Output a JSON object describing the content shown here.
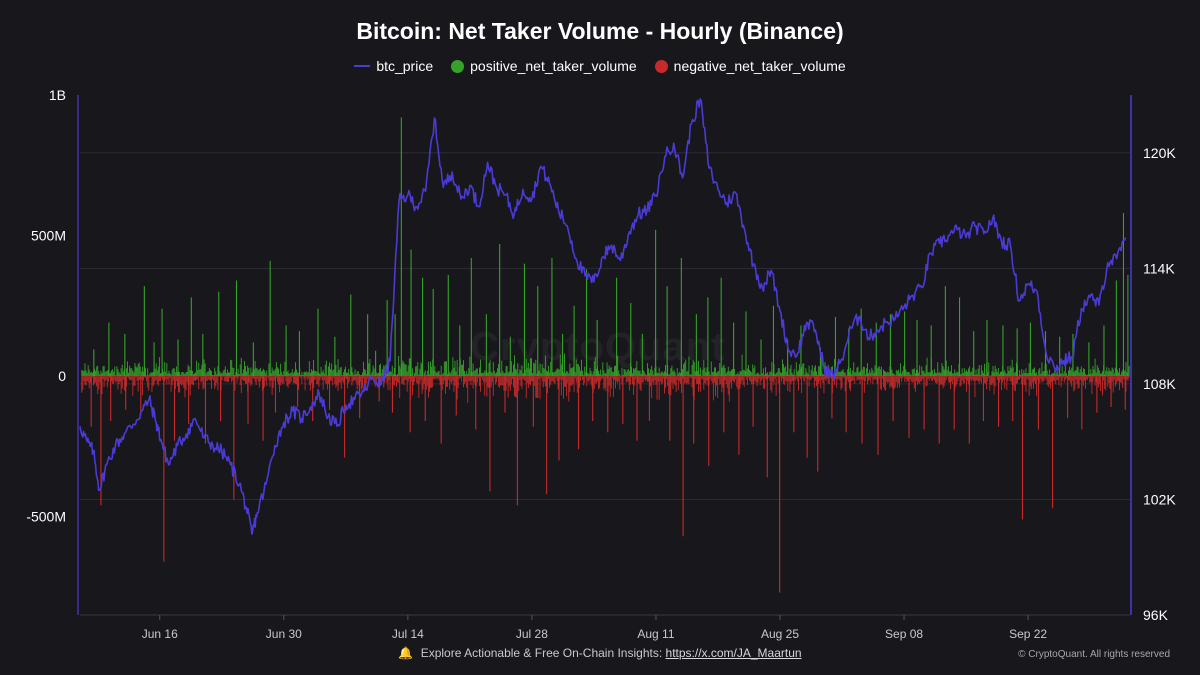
{
  "header": {
    "title": "Bitcoin: Net Taker Volume - Hourly (Binance)"
  },
  "legend": {
    "btc_price": "btc_price",
    "positive": "positive_net_taker_volume",
    "negative": "negative_net_taker_volume"
  },
  "colors": {
    "background": "#18171c",
    "price_line": "#4a3bd6",
    "positive": "#35a22a",
    "negative": "#c62a2a",
    "grid": "#2c2b33",
    "axis_text": "#ffffff"
  },
  "watermark": "CryptoQuant",
  "footer": {
    "text": "Explore Actionable & Free On-Chain Insights:",
    "link": "https://x.com/JA_Maartun",
    "copyright": "© CryptoQuant. All rights reserved"
  },
  "chart_data": {
    "type": "bar",
    "title": "Bitcoin: Net Taker Volume - Hourly (Binance)",
    "x_tick_labels": [
      "Jun 16",
      "Jun 30",
      "Jul 14",
      "Jul 28",
      "Aug 11",
      "Aug 25",
      "Sep 08",
      "Sep 22"
    ],
    "x_tick_positions_days": [
      9,
      23,
      37,
      51,
      65,
      79,
      93,
      107
    ],
    "x_range_days": [
      0,
      118.5
    ],
    "y_left": {
      "ticks": [
        1000000000,
        500000000,
        0,
        -500000000
      ],
      "tick_labels": [
        "1B",
        "500M",
        "0",
        "-500M"
      ],
      "range": [
        -850000000,
        1000000000
      ]
    },
    "y_right": {
      "ticks": [
        96000,
        102000,
        108000,
        114000,
        120000
      ],
      "tick_labels": [
        "96K",
        "102K",
        "108K",
        "114K",
        "120K"
      ],
      "range": [
        96000,
        123000
      ]
    },
    "series": [
      {
        "name": "btc_price",
        "kind": "line",
        "axis": "right",
        "points": [
          [
            0,
            105800
          ],
          [
            0.8,
            105000
          ],
          [
            1.5,
            104500
          ],
          [
            2.2,
            102500
          ],
          [
            3,
            103800
          ],
          [
            4,
            104800
          ],
          [
            5,
            105400
          ],
          [
            6,
            105900
          ],
          [
            7,
            106600
          ],
          [
            7.8,
            107200
          ],
          [
            8.6,
            106000
          ],
          [
            9.2,
            105000
          ],
          [
            10,
            103800
          ],
          [
            11,
            104800
          ],
          [
            12,
            105400
          ],
          [
            13,
            106200
          ],
          [
            14,
            105200
          ],
          [
            15,
            104800
          ],
          [
            16,
            104500
          ],
          [
            17,
            103800
          ],
          [
            18,
            102800
          ],
          [
            18.8,
            101500
          ],
          [
            19.4,
            100200
          ],
          [
            20,
            101300
          ],
          [
            21,
            102800
          ],
          [
            22,
            104800
          ],
          [
            23,
            106000
          ],
          [
            24,
            106600
          ],
          [
            25,
            106200
          ],
          [
            26,
            106800
          ],
          [
            27,
            107500
          ],
          [
            28,
            106300
          ],
          [
            29,
            105800
          ],
          [
            30,
            106900
          ],
          [
            31,
            107200
          ],
          [
            32,
            107600
          ],
          [
            33,
            108300
          ],
          [
            34,
            108000
          ],
          [
            35,
            109200
          ],
          [
            36,
            117500
          ],
          [
            37,
            117800
          ],
          [
            38,
            117200
          ],
          [
            39,
            118000
          ],
          [
            40,
            121800
          ],
          [
            41,
            118200
          ],
          [
            42,
            119000
          ],
          [
            43,
            117600
          ],
          [
            44,
            118300
          ],
          [
            45,
            117200
          ],
          [
            46,
            119500
          ],
          [
            47,
            118200
          ],
          [
            48,
            117800
          ],
          [
            49,
            116800
          ],
          [
            50,
            118100
          ],
          [
            51,
            117600
          ],
          [
            52,
            119300
          ],
          [
            53,
            118400
          ],
          [
            54,
            117000
          ],
          [
            55,
            116200
          ],
          [
            56,
            114500
          ],
          [
            57,
            113600
          ],
          [
            58,
            113300
          ],
          [
            59,
            114600
          ],
          [
            60,
            115200
          ],
          [
            61,
            114400
          ],
          [
            62,
            115900
          ],
          [
            63,
            116800
          ],
          [
            64,
            117000
          ],
          [
            65,
            117800
          ],
          [
            66,
            119800
          ],
          [
            67,
            120500
          ],
          [
            68,
            118700
          ],
          [
            69,
            121500
          ],
          [
            70,
            122800
          ],
          [
            71,
            119200
          ],
          [
            72,
            118100
          ],
          [
            73,
            117400
          ],
          [
            74,
            117900
          ],
          [
            75,
            116000
          ],
          [
            76,
            114200
          ],
          [
            77,
            113000
          ],
          [
            78,
            113900
          ],
          [
            79,
            111800
          ],
          [
            80,
            109700
          ],
          [
            81,
            109600
          ],
          [
            82,
            111200
          ],
          [
            83,
            110800
          ],
          [
            84,
            108800
          ],
          [
            85,
            108400
          ],
          [
            86,
            109300
          ],
          [
            87,
            110900
          ],
          [
            88,
            111500
          ],
          [
            89,
            110400
          ],
          [
            90,
            110800
          ],
          [
            91,
            111200
          ],
          [
            92,
            111400
          ],
          [
            93,
            112000
          ],
          [
            94,
            112600
          ],
          [
            95,
            113000
          ],
          [
            96,
            114800
          ],
          [
            97,
            115300
          ],
          [
            98,
            115700
          ],
          [
            99,
            116000
          ],
          [
            100,
            115600
          ],
          [
            101,
            116200
          ],
          [
            102,
            115800
          ],
          [
            103,
            116600
          ],
          [
            104,
            115400
          ],
          [
            105,
            115200
          ],
          [
            106,
            112300
          ],
          [
            107,
            113200
          ],
          [
            108,
            112800
          ],
          [
            109,
            109700
          ],
          [
            110,
            108800
          ],
          [
            111,
            109200
          ],
          [
            112,
            109400
          ],
          [
            113,
            111900
          ],
          [
            114,
            112500
          ],
          [
            115,
            112100
          ],
          [
            116,
            114300
          ],
          [
            117,
            114500
          ],
          [
            118,
            115600
          ]
        ]
      },
      {
        "name": "positive_net_taker_volume",
        "kind": "bar",
        "axis": "left",
        "spikes": [
          [
            1.5,
            95000000
          ],
          [
            3.2,
            190000000
          ],
          [
            5,
            150000000
          ],
          [
            7.2,
            320000000
          ],
          [
            8.3,
            120000000
          ],
          [
            9.2,
            240000000
          ],
          [
            11,
            130000000
          ],
          [
            12.5,
            280000000
          ],
          [
            13.8,
            150000000
          ],
          [
            15.6,
            300000000
          ],
          [
            17.6,
            340000000
          ],
          [
            19.5,
            120000000
          ],
          [
            21.4,
            410000000
          ],
          [
            23.2,
            180000000
          ],
          [
            24.7,
            160000000
          ],
          [
            26.8,
            240000000
          ],
          [
            28.7,
            140000000
          ],
          [
            30.5,
            290000000
          ],
          [
            32.4,
            220000000
          ],
          [
            33.3,
            90000000
          ],
          [
            34.6,
            270000000
          ],
          [
            35.5,
            220000000
          ],
          [
            36.2,
            920000000
          ],
          [
            37.3,
            450000000
          ],
          [
            38.6,
            350000000
          ],
          [
            39.8,
            310000000
          ],
          [
            41.5,
            360000000
          ],
          [
            42.8,
            180000000
          ],
          [
            44.1,
            420000000
          ],
          [
            45.8,
            220000000
          ],
          [
            47.3,
            470000000
          ],
          [
            48.5,
            140000000
          ],
          [
            50.1,
            400000000
          ],
          [
            51.6,
            320000000
          ],
          [
            53.2,
            420000000
          ],
          [
            54.4,
            150000000
          ],
          [
            55.7,
            250000000
          ],
          [
            57.1,
            380000000
          ],
          [
            58.3,
            200000000
          ],
          [
            60.5,
            350000000
          ],
          [
            62.1,
            260000000
          ],
          [
            63.4,
            150000000
          ],
          [
            64.9,
            520000000
          ],
          [
            66.2,
            320000000
          ],
          [
            67.8,
            420000000
          ],
          [
            69.5,
            220000000
          ],
          [
            70.8,
            280000000
          ],
          [
            72.3,
            350000000
          ],
          [
            73.7,
            190000000
          ],
          [
            75.1,
            230000000
          ],
          [
            76.8,
            130000000
          ],
          [
            78.2,
            250000000
          ],
          [
            79.8,
            130000000
          ],
          [
            81.3,
            180000000
          ],
          [
            83.5,
            100000000
          ],
          [
            85.2,
            210000000
          ],
          [
            86.7,
            170000000
          ],
          [
            88.1,
            240000000
          ],
          [
            89.8,
            190000000
          ],
          [
            91.4,
            220000000
          ],
          [
            93.0,
            230000000
          ],
          [
            94.4,
            200000000
          ],
          [
            96.0,
            180000000
          ],
          [
            97.6,
            320000000
          ],
          [
            99.2,
            280000000
          ],
          [
            100.8,
            160000000
          ],
          [
            102.3,
            200000000
          ],
          [
            104.1,
            180000000
          ],
          [
            105.7,
            170000000
          ],
          [
            107.2,
            190000000
          ],
          [
            108.9,
            160000000
          ],
          [
            110.5,
            140000000
          ],
          [
            112.0,
            150000000
          ],
          [
            113.8,
            120000000
          ],
          [
            115.5,
            180000000
          ],
          [
            116.9,
            340000000
          ],
          [
            117.7,
            580000000
          ],
          [
            118.2,
            360000000
          ]
        ]
      },
      {
        "name": "negative_net_taker_volume",
        "kind": "bar",
        "axis": "left",
        "spikes": [
          [
            1.2,
            -180000000
          ],
          [
            2.3,
            -460000000
          ],
          [
            3.4,
            -160000000
          ],
          [
            5.1,
            -120000000
          ],
          [
            6.8,
            -140000000
          ],
          [
            9.4,
            -660000000
          ],
          [
            10.6,
            -230000000
          ],
          [
            12.2,
            -170000000
          ],
          [
            14.1,
            -240000000
          ],
          [
            15.8,
            -160000000
          ],
          [
            17.3,
            -440000000
          ],
          [
            18.9,
            -170000000
          ],
          [
            20.6,
            -230000000
          ],
          [
            22.0,
            -130000000
          ],
          [
            24.5,
            -110000000
          ],
          [
            26.2,
            -160000000
          ],
          [
            28.1,
            -120000000
          ],
          [
            29.8,
            -290000000
          ],
          [
            31.5,
            -150000000
          ],
          [
            33.7,
            -90000000
          ],
          [
            35.2,
            -130000000
          ],
          [
            37.2,
            -200000000
          ],
          [
            38.9,
            -160000000
          ],
          [
            40.7,
            -240000000
          ],
          [
            42.4,
            -140000000
          ],
          [
            44.6,
            -190000000
          ],
          [
            46.2,
            -410000000
          ],
          [
            47.9,
            -130000000
          ],
          [
            49.3,
            -460000000
          ],
          [
            51.1,
            -180000000
          ],
          [
            52.6,
            -420000000
          ],
          [
            54.0,
            -300000000
          ],
          [
            56.2,
            -260000000
          ],
          [
            57.8,
            -160000000
          ],
          [
            59.5,
            -200000000
          ],
          [
            61.2,
            -170000000
          ],
          [
            62.8,
            -230000000
          ],
          [
            64.2,
            -160000000
          ],
          [
            66.5,
            -230000000
          ],
          [
            68.0,
            -570000000
          ],
          [
            69.2,
            -240000000
          ],
          [
            70.9,
            -320000000
          ],
          [
            72.6,
            -200000000
          ],
          [
            74.3,
            -280000000
          ],
          [
            75.9,
            -180000000
          ],
          [
            77.5,
            -360000000
          ],
          [
            78.9,
            -770000000
          ],
          [
            80.5,
            -200000000
          ],
          [
            82.0,
            -290000000
          ],
          [
            83.2,
            -340000000
          ],
          [
            84.8,
            -150000000
          ],
          [
            86.4,
            -200000000
          ],
          [
            88.2,
            -240000000
          ],
          [
            90.0,
            -280000000
          ],
          [
            91.7,
            -160000000
          ],
          [
            93.5,
            -220000000
          ],
          [
            95.2,
            -190000000
          ],
          [
            96.9,
            -240000000
          ],
          [
            98.6,
            -190000000
          ],
          [
            100.3,
            -240000000
          ],
          [
            101.9,
            -160000000
          ],
          [
            103.6,
            -180000000
          ],
          [
            105.2,
            -160000000
          ],
          [
            106.3,
            -510000000
          ],
          [
            108.1,
            -190000000
          ],
          [
            109.7,
            -470000000
          ],
          [
            111.4,
            -150000000
          ],
          [
            113.0,
            -190000000
          ],
          [
            114.7,
            -130000000
          ],
          [
            116.3,
            -110000000
          ],
          [
            117.9,
            -120000000
          ]
        ]
      }
    ],
    "legend_position": "top-center",
    "grid": true
  }
}
